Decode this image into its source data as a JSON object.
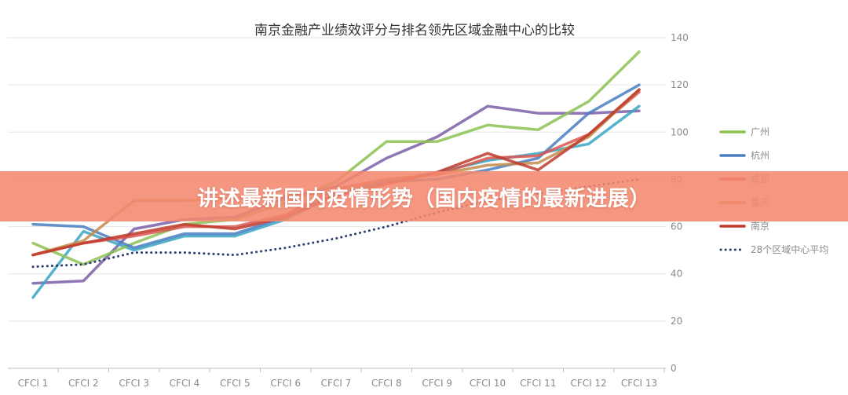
{
  "banner": {
    "text": "讲述最新国内疫情形势（国内疫情的最新进展）"
  },
  "chart_data": {
    "type": "line",
    "title": "南京金融产业绩效评分与排名领先区域金融中心的比较",
    "xlabel": "",
    "ylabel": "",
    "categories": [
      "CFCI 1",
      "CFCI 2",
      "CFCI 3",
      "CFCI 4",
      "CFCI 5",
      "CFCI 6",
      "CFCI 7",
      "CFCI 8",
      "CFCI 9",
      "CFCI 10",
      "CFCI 11",
      "CFCI 12",
      "CFCI 13"
    ],
    "ylim": [
      0,
      140
    ],
    "yticks": [
      0,
      20,
      40,
      60,
      80,
      100,
      120,
      140
    ],
    "y_axis_side": "right",
    "grid": true,
    "legend_position": "right",
    "series": [
      {
        "name": "广州",
        "color": "#8cc152",
        "style": "solid",
        "values": [
          53,
          44,
          53,
          61,
          63,
          70,
          79,
          96,
          96,
          103,
          101,
          113,
          134
        ]
      },
      {
        "name": "杭州",
        "color": "#4a7ec2",
        "style": "solid",
        "values": [
          61,
          60,
          51,
          57,
          57,
          64,
          74,
          79,
          80,
          84,
          89,
          108,
          120
        ]
      },
      {
        "name": "成都",
        "color": "#d9564d",
        "style": "solid",
        "values": [
          48,
          53,
          56,
          60,
          60,
          65,
          76,
          80,
          82,
          89,
          90,
          99,
          117
        ]
      },
      {
        "name": "重庆",
        "color": "#c4894a",
        "style": "solid",
        "values": [
          48,
          54,
          71,
          71,
          72,
          73,
          75,
          80,
          82,
          86,
          87,
          98,
          118
        ]
      },
      {
        "name": "南京",
        "color": "#c0392b",
        "style": "solid",
        "values": [
          48,
          53,
          57,
          61,
          59,
          64,
          73,
          78,
          83,
          91,
          84,
          99,
          118
        ]
      },
      {
        "name": "28个区域中心平均",
        "color": "#2c3e6e",
        "style": "dotted",
        "values": [
          43,
          44,
          49,
          49,
          48,
          51,
          55,
          60,
          66,
          71,
          74,
          77,
          80
        ]
      }
    ],
    "extra_lines": [
      {
        "color": "#7b5ea7",
        "values": [
          36,
          37,
          59,
          63,
          64,
          72,
          77,
          89,
          98,
          111,
          108,
          108,
          109
        ]
      },
      {
        "color": "#3aa6c4",
        "values": [
          30,
          58,
          50,
          56,
          56,
          63,
          74,
          79,
          83,
          88,
          91,
          95,
          111
        ]
      }
    ]
  }
}
